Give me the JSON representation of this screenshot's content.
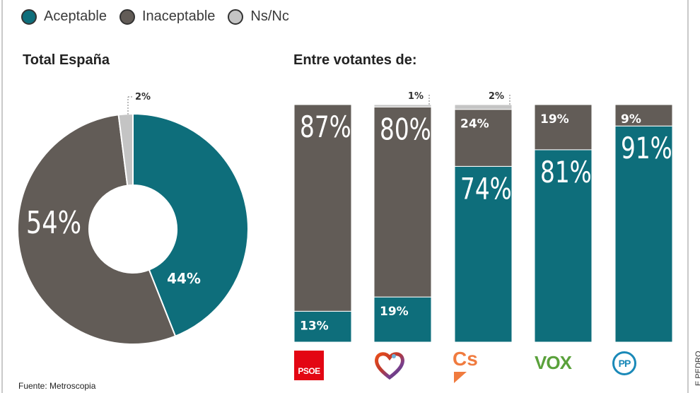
{
  "legend": [
    {
      "label": "Aceptable",
      "color": "#0e6e7b"
    },
    {
      "label": "Inaceptable",
      "color": "#625c57"
    },
    {
      "label": "Ns/Nc",
      "color": "#c4c4c4"
    }
  ],
  "source": "Fuente: Metroscopia",
  "credit": "E PEDRO",
  "colors": {
    "aceptable": "#0e6e7b",
    "inaceptable": "#625c57",
    "nsnc": "#c4c4c4",
    "text_light": "#ffffff"
  },
  "chart_data": [
    {
      "type": "pie",
      "variant": "donut",
      "title": "Total España",
      "categories": [
        "Aceptable",
        "Inaceptable",
        "Ns/Nc"
      ],
      "values": [
        44,
        54,
        2
      ],
      "labels": [
        "44%",
        "54%",
        "2%"
      ]
    },
    {
      "type": "bar",
      "stacked": true,
      "orientation": "vertical",
      "title": "Entre votantes de:",
      "categories": [
        "PSOE",
        "Podemos",
        "Cs",
        "VOX",
        "PP"
      ],
      "series": [
        {
          "name": "Aceptable",
          "values": [
            13,
            19,
            74,
            81,
            91
          ],
          "labels": [
            "13%",
            "19%",
            "74%",
            "81%",
            "91%"
          ]
        },
        {
          "name": "Inaceptable",
          "values": [
            87,
            80,
            24,
            19,
            9
          ],
          "labels": [
            "87%",
            "80%",
            "24%",
            "19%",
            "9%"
          ]
        },
        {
          "name": "Ns/Nc",
          "values": [
            0,
            1,
            2,
            0,
            0
          ],
          "labels": [
            "",
            "1%",
            "2%",
            "",
            ""
          ]
        }
      ],
      "ylim": [
        0,
        100
      ],
      "legend": "top-left"
    }
  ],
  "party_logos": [
    {
      "party": "PSOE",
      "icon": "psoe-logo",
      "text": "PSOE"
    },
    {
      "party": "Podemos",
      "icon": "heart-logo",
      "text": ""
    },
    {
      "party": "Cs",
      "icon": "cs-logo",
      "text": "Cs"
    },
    {
      "party": "VOX",
      "icon": "vox-logo",
      "text": "VOX"
    },
    {
      "party": "PP",
      "icon": "pp-logo",
      "text": "PP"
    }
  ]
}
